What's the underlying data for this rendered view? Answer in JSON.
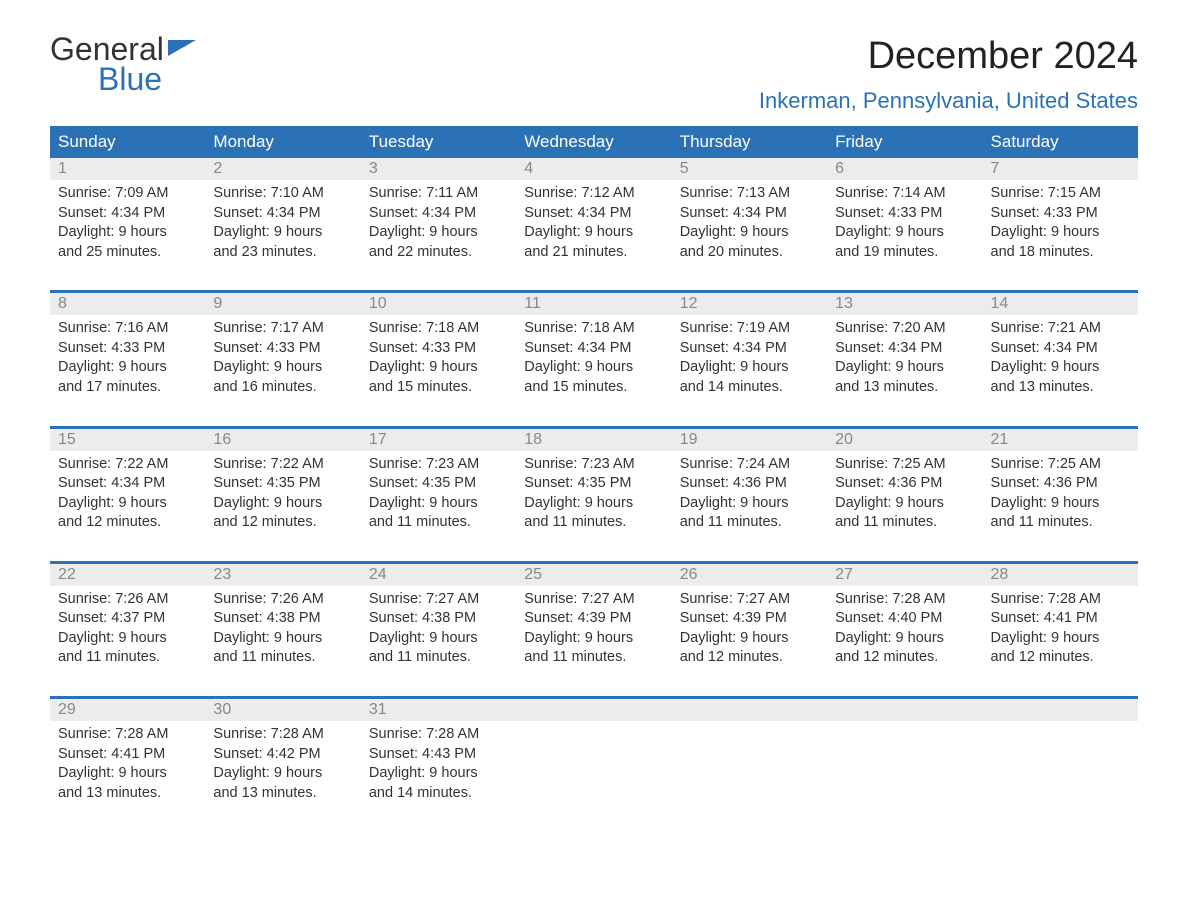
{
  "logo": {
    "word1": "General",
    "word2": "Blue"
  },
  "title": "December 2024",
  "location": "Inkerman, Pennsylvania, United States",
  "colors": {
    "accent": "#2a72b5",
    "header_text": "#ffffff",
    "daynum_bg": "#ececec",
    "daynum_fg": "#888888",
    "body_text": "#333333",
    "page_bg": "#ffffff"
  },
  "day_headers": [
    "Sunday",
    "Monday",
    "Tuesday",
    "Wednesday",
    "Thursday",
    "Friday",
    "Saturday"
  ],
  "weeks": [
    [
      {
        "n": "1",
        "sr": "Sunrise: 7:09 AM",
        "ss": "Sunset: 4:34 PM",
        "d1": "Daylight: 9 hours",
        "d2": "and 25 minutes."
      },
      {
        "n": "2",
        "sr": "Sunrise: 7:10 AM",
        "ss": "Sunset: 4:34 PM",
        "d1": "Daylight: 9 hours",
        "d2": "and 23 minutes."
      },
      {
        "n": "3",
        "sr": "Sunrise: 7:11 AM",
        "ss": "Sunset: 4:34 PM",
        "d1": "Daylight: 9 hours",
        "d2": "and 22 minutes."
      },
      {
        "n": "4",
        "sr": "Sunrise: 7:12 AM",
        "ss": "Sunset: 4:34 PM",
        "d1": "Daylight: 9 hours",
        "d2": "and 21 minutes."
      },
      {
        "n": "5",
        "sr": "Sunrise: 7:13 AM",
        "ss": "Sunset: 4:34 PM",
        "d1": "Daylight: 9 hours",
        "d2": "and 20 minutes."
      },
      {
        "n": "6",
        "sr": "Sunrise: 7:14 AM",
        "ss": "Sunset: 4:33 PM",
        "d1": "Daylight: 9 hours",
        "d2": "and 19 minutes."
      },
      {
        "n": "7",
        "sr": "Sunrise: 7:15 AM",
        "ss": "Sunset: 4:33 PM",
        "d1": "Daylight: 9 hours",
        "d2": "and 18 minutes."
      }
    ],
    [
      {
        "n": "8",
        "sr": "Sunrise: 7:16 AM",
        "ss": "Sunset: 4:33 PM",
        "d1": "Daylight: 9 hours",
        "d2": "and 17 minutes."
      },
      {
        "n": "9",
        "sr": "Sunrise: 7:17 AM",
        "ss": "Sunset: 4:33 PM",
        "d1": "Daylight: 9 hours",
        "d2": "and 16 minutes."
      },
      {
        "n": "10",
        "sr": "Sunrise: 7:18 AM",
        "ss": "Sunset: 4:33 PM",
        "d1": "Daylight: 9 hours",
        "d2": "and 15 minutes."
      },
      {
        "n": "11",
        "sr": "Sunrise: 7:18 AM",
        "ss": "Sunset: 4:34 PM",
        "d1": "Daylight: 9 hours",
        "d2": "and 15 minutes."
      },
      {
        "n": "12",
        "sr": "Sunrise: 7:19 AM",
        "ss": "Sunset: 4:34 PM",
        "d1": "Daylight: 9 hours",
        "d2": "and 14 minutes."
      },
      {
        "n": "13",
        "sr": "Sunrise: 7:20 AM",
        "ss": "Sunset: 4:34 PM",
        "d1": "Daylight: 9 hours",
        "d2": "and 13 minutes."
      },
      {
        "n": "14",
        "sr": "Sunrise: 7:21 AM",
        "ss": "Sunset: 4:34 PM",
        "d1": "Daylight: 9 hours",
        "d2": "and 13 minutes."
      }
    ],
    [
      {
        "n": "15",
        "sr": "Sunrise: 7:22 AM",
        "ss": "Sunset: 4:34 PM",
        "d1": "Daylight: 9 hours",
        "d2": "and 12 minutes."
      },
      {
        "n": "16",
        "sr": "Sunrise: 7:22 AM",
        "ss": "Sunset: 4:35 PM",
        "d1": "Daylight: 9 hours",
        "d2": "and 12 minutes."
      },
      {
        "n": "17",
        "sr": "Sunrise: 7:23 AM",
        "ss": "Sunset: 4:35 PM",
        "d1": "Daylight: 9 hours",
        "d2": "and 11 minutes."
      },
      {
        "n": "18",
        "sr": "Sunrise: 7:23 AM",
        "ss": "Sunset: 4:35 PM",
        "d1": "Daylight: 9 hours",
        "d2": "and 11 minutes."
      },
      {
        "n": "19",
        "sr": "Sunrise: 7:24 AM",
        "ss": "Sunset: 4:36 PM",
        "d1": "Daylight: 9 hours",
        "d2": "and 11 minutes."
      },
      {
        "n": "20",
        "sr": "Sunrise: 7:25 AM",
        "ss": "Sunset: 4:36 PM",
        "d1": "Daylight: 9 hours",
        "d2": "and 11 minutes."
      },
      {
        "n": "21",
        "sr": "Sunrise: 7:25 AM",
        "ss": "Sunset: 4:36 PM",
        "d1": "Daylight: 9 hours",
        "d2": "and 11 minutes."
      }
    ],
    [
      {
        "n": "22",
        "sr": "Sunrise: 7:26 AM",
        "ss": "Sunset: 4:37 PM",
        "d1": "Daylight: 9 hours",
        "d2": "and 11 minutes."
      },
      {
        "n": "23",
        "sr": "Sunrise: 7:26 AM",
        "ss": "Sunset: 4:38 PM",
        "d1": "Daylight: 9 hours",
        "d2": "and 11 minutes."
      },
      {
        "n": "24",
        "sr": "Sunrise: 7:27 AM",
        "ss": "Sunset: 4:38 PM",
        "d1": "Daylight: 9 hours",
        "d2": "and 11 minutes."
      },
      {
        "n": "25",
        "sr": "Sunrise: 7:27 AM",
        "ss": "Sunset: 4:39 PM",
        "d1": "Daylight: 9 hours",
        "d2": "and 11 minutes."
      },
      {
        "n": "26",
        "sr": "Sunrise: 7:27 AM",
        "ss": "Sunset: 4:39 PM",
        "d1": "Daylight: 9 hours",
        "d2": "and 12 minutes."
      },
      {
        "n": "27",
        "sr": "Sunrise: 7:28 AM",
        "ss": "Sunset: 4:40 PM",
        "d1": "Daylight: 9 hours",
        "d2": "and 12 minutes."
      },
      {
        "n": "28",
        "sr": "Sunrise: 7:28 AM",
        "ss": "Sunset: 4:41 PM",
        "d1": "Daylight: 9 hours",
        "d2": "and 12 minutes."
      }
    ],
    [
      {
        "n": "29",
        "sr": "Sunrise: 7:28 AM",
        "ss": "Sunset: 4:41 PM",
        "d1": "Daylight: 9 hours",
        "d2": "and 13 minutes."
      },
      {
        "n": "30",
        "sr": "Sunrise: 7:28 AM",
        "ss": "Sunset: 4:42 PM",
        "d1": "Daylight: 9 hours",
        "d2": "and 13 minutes."
      },
      {
        "n": "31",
        "sr": "Sunrise: 7:28 AM",
        "ss": "Sunset: 4:43 PM",
        "d1": "Daylight: 9 hours",
        "d2": "and 14 minutes."
      },
      null,
      null,
      null,
      null
    ]
  ]
}
